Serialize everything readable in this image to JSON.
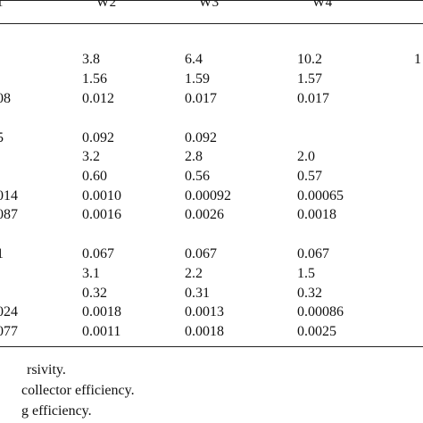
{
  "table": {
    "headers": [
      {
        "col": "c0",
        "text": "1"
      },
      {
        "col": "c1",
        "text": "W2"
      },
      {
        "col": "c2",
        "text": "W3"
      },
      {
        "col": "c3",
        "text": "W4"
      }
    ],
    "rows": [
      [
        "",
        "3.8",
        "6.4",
        "10.2",
        "1"
      ],
      [
        "",
        "1.56",
        "1.59",
        "1.57",
        ""
      ],
      [
        "08",
        "0.012",
        "0.017",
        "0.017",
        ""
      ],
      [
        "5",
        "0.092",
        "0.092",
        "",
        ""
      ],
      [
        "",
        "3.2",
        "2.8",
        "2.0",
        ""
      ],
      [
        "",
        "0.60",
        "0.56",
        "0.57",
        ""
      ],
      [
        "014",
        "0.0010",
        "0.00092",
        "0.00065",
        ""
      ],
      [
        "087",
        "0.0016",
        "0.0026",
        "0.0018",
        ""
      ],
      [
        "1",
        "0.067",
        "0.067",
        "0.067",
        ""
      ],
      [
        "",
        "3.1",
        "2.2",
        "1.5",
        ""
      ],
      [
        "",
        "0.32",
        "0.31",
        "0.32",
        ""
      ],
      [
        "024",
        "0.0018",
        "0.0013",
        "0.00086",
        ""
      ],
      [
        "077",
        "0.0011",
        "0.0018",
        "0.0025",
        ""
      ]
    ]
  },
  "footnotes": [
    "rsivity.",
    "collector efficiency.",
    "g efficiency."
  ]
}
